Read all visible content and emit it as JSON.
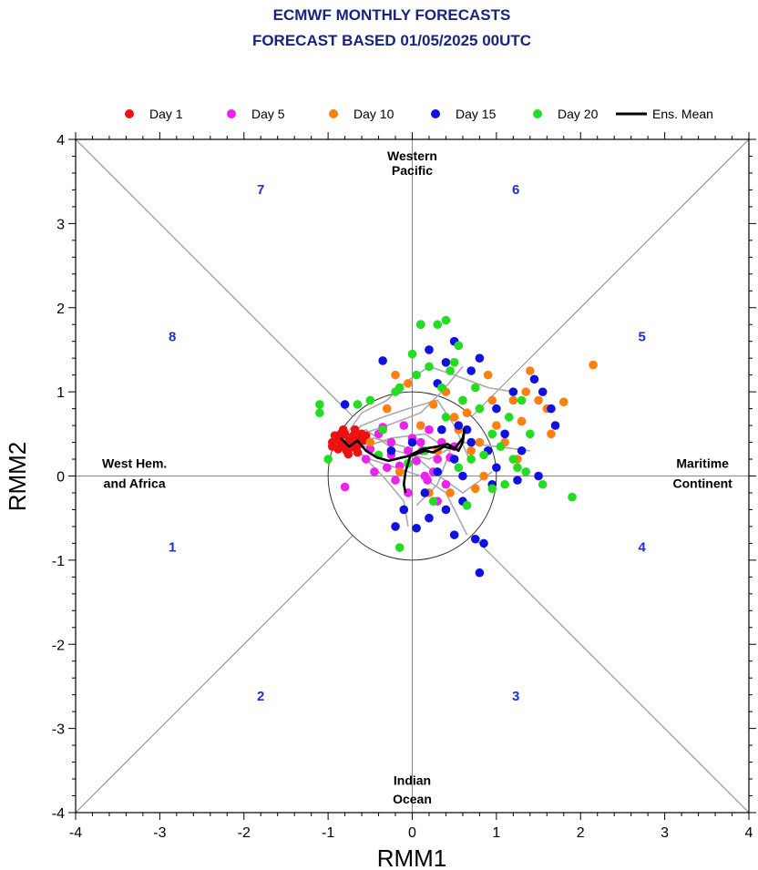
{
  "chart_data": {
    "type": "scatter",
    "title": "ECMWF MONTHLY FORECASTS",
    "subtitle": "FORECAST  BASED 01/05/2025 00UTC",
    "xlabel": "RMM1",
    "ylabel": "RMM2",
    "xlim": [
      -4,
      4
    ],
    "ylim": [
      -4,
      4
    ],
    "xticks": [
      "-4",
      "-3",
      "-2",
      "-1",
      "0",
      "1",
      "2",
      "3",
      "4"
    ],
    "yticks": [
      "-4",
      "-3",
      "-2",
      "-1",
      "0",
      "1",
      "2",
      "3",
      "4"
    ],
    "grid": false,
    "legend_position": "top",
    "colors": {
      "title": "#1a237e",
      "phase_number": "#1f2fd6",
      "day1": "#ee1111",
      "day5": "#ee22ee",
      "day10": "#ff7f12",
      "day15": "#1010e0",
      "day20": "#22dd22",
      "ens_mean": "#000000",
      "ensemble_track": "#aaaaaa",
      "guide_lines": "#888888"
    },
    "regions": [
      {
        "label": "Western",
        "x": 0,
        "y": 3.75
      },
      {
        "label": "Pacific",
        "x": 0,
        "y": 3.58
      },
      {
        "label": "West Hem.",
        "x": -3.3,
        "y": 0.1
      },
      {
        "label": "and Africa",
        "x": -3.3,
        "y": -0.14
      },
      {
        "label": "Maritime",
        "x": 3.45,
        "y": 0.1
      },
      {
        "label": "Continent",
        "x": 3.45,
        "y": -0.14
      },
      {
        "label": "Indian",
        "x": 0,
        "y": -3.67
      },
      {
        "label": "Ocean",
        "x": 0,
        "y": -3.89
      }
    ],
    "phases": [
      {
        "label": "1",
        "x": -2.85,
        "y": -0.9
      },
      {
        "label": "2",
        "x": -1.8,
        "y": -2.67
      },
      {
        "label": "3",
        "x": 1.23,
        "y": -2.67
      },
      {
        "label": "4",
        "x": 2.73,
        "y": -0.9
      },
      {
        "label": "5",
        "x": 2.73,
        "y": 1.6
      },
      {
        "label": "6",
        "x": 1.23,
        "y": 3.35
      },
      {
        "label": "7",
        "x": -1.8,
        "y": 3.35
      },
      {
        "label": "8",
        "x": -2.85,
        "y": 1.6
      }
    ],
    "series": [
      {
        "name": "Day 1",
        "marker": "day1",
        "points": [
          [
            -0.95,
            0.4
          ],
          [
            -0.9,
            0.45
          ],
          [
            -0.85,
            0.38
          ],
          [
            -0.8,
            0.5
          ],
          [
            -0.78,
            0.3
          ],
          [
            -0.75,
            0.42
          ],
          [
            -0.7,
            0.48
          ],
          [
            -0.65,
            0.36
          ],
          [
            -0.6,
            0.5
          ],
          [
            -0.58,
            0.42
          ],
          [
            -0.88,
            0.32
          ],
          [
            -0.82,
            0.55
          ],
          [
            -0.72,
            0.34
          ],
          [
            -0.68,
            0.55
          ],
          [
            -0.92,
            0.48
          ],
          [
            -0.62,
            0.45
          ],
          [
            -0.55,
            0.48
          ],
          [
            -0.86,
            0.42
          ],
          [
            -0.76,
            0.26
          ],
          [
            -0.8,
            0.35
          ],
          [
            -0.7,
            0.4
          ],
          [
            -0.85,
            0.5
          ],
          [
            -0.95,
            0.35
          ],
          [
            -0.65,
            0.28
          ]
        ]
      },
      {
        "name": "Day 5",
        "marker": "day5",
        "points": [
          [
            -0.8,
            -0.13
          ],
          [
            -0.5,
            0.32
          ],
          [
            -0.4,
            0.5
          ],
          [
            -0.25,
            0.4
          ],
          [
            -0.15,
            0.12
          ],
          [
            -0.05,
            0.3
          ],
          [
            0.1,
            0.4
          ],
          [
            0.2,
            0.55
          ],
          [
            -0.3,
            0.1
          ],
          [
            -0.45,
            0.05
          ],
          [
            0.05,
            0.18
          ],
          [
            -0.2,
            -0.05
          ],
          [
            0.15,
            0.0
          ],
          [
            -0.35,
            0.58
          ],
          [
            0.3,
            0.2
          ],
          [
            0.0,
            0.45
          ],
          [
            -0.1,
            0.6
          ],
          [
            0.25,
            0.05
          ],
          [
            -0.55,
            0.2
          ],
          [
            0.12,
            0.3
          ],
          [
            0.4,
            -0.1
          ],
          [
            -0.05,
            -0.2
          ],
          [
            0.35,
            0.4
          ],
          [
            0.45,
            0.22
          ],
          [
            -0.25,
            0.25
          ],
          [
            0.18,
            -0.05
          ],
          [
            0.5,
            0.35
          ],
          [
            0.3,
            -0.3
          ]
        ]
      },
      {
        "name": "Day 10",
        "marker": "day10",
        "points": [
          [
            2.15,
            1.32
          ],
          [
            1.8,
            0.88
          ],
          [
            1.65,
            0.5
          ],
          [
            1.6,
            0.8
          ],
          [
            1.3,
            0.65
          ],
          [
            1.4,
            1.25
          ],
          [
            1.2,
            0.9
          ],
          [
            1.0,
            0.6
          ],
          [
            0.8,
            0.4
          ],
          [
            0.6,
            0.9
          ],
          [
            0.5,
            0.7
          ],
          [
            0.4,
            1.0
          ],
          [
            -0.2,
            1.2
          ],
          [
            -0.5,
            0.4
          ],
          [
            0.2,
            -0.2
          ],
          [
            -0.3,
            0.8
          ],
          [
            0.9,
            1.2
          ],
          [
            0.7,
            0.3
          ],
          [
            1.1,
            0.4
          ],
          [
            1.5,
            0.9
          ],
          [
            0.3,
            0.3
          ],
          [
            0.55,
            0.55
          ],
          [
            0.65,
            0.75
          ],
          [
            1.25,
            0.2
          ],
          [
            -0.15,
            0.05
          ],
          [
            0.45,
            -0.2
          ],
          [
            0.85,
            0.0
          ],
          [
            0.1,
            0.6
          ],
          [
            0.75,
            -0.15
          ],
          [
            0.95,
            0.9
          ],
          [
            1.35,
            1.0
          ],
          [
            0.25,
            0.85
          ],
          [
            -0.05,
            1.1
          ]
        ]
      },
      {
        "name": "Day 15",
        "marker": "day15",
        "points": [
          [
            0.8,
            -1.15
          ],
          [
            0.85,
            -0.8
          ],
          [
            0.75,
            -0.75
          ],
          [
            0.6,
            -0.3
          ],
          [
            0.5,
            -0.7
          ],
          [
            0.2,
            -0.5
          ],
          [
            0.05,
            -0.62
          ],
          [
            -0.2,
            -0.6
          ],
          [
            -0.1,
            -0.4
          ],
          [
            0.3,
            0.05
          ],
          [
            0.5,
            0.2
          ],
          [
            0.7,
            0.4
          ],
          [
            0.9,
            0.3
          ],
          [
            1.1,
            0.5
          ],
          [
            1.3,
            0.3
          ],
          [
            1.5,
            0.0
          ],
          [
            1.7,
            0.6
          ],
          [
            1.65,
            0.8
          ],
          [
            1.55,
            1.0
          ],
          [
            1.45,
            1.15
          ],
          [
            1.2,
            1.0
          ],
          [
            1.0,
            0.8
          ],
          [
            0.8,
            1.4
          ],
          [
            0.7,
            1.25
          ],
          [
            0.5,
            1.6
          ],
          [
            0.4,
            1.35
          ],
          [
            0.3,
            1.1
          ],
          [
            0.2,
            1.5
          ],
          [
            0.1,
            1.8
          ],
          [
            -0.35,
            1.37
          ],
          [
            -0.8,
            0.85
          ],
          [
            0.0,
            0.4
          ],
          [
            0.6,
            0.0
          ],
          [
            0.4,
            -0.4
          ],
          [
            0.65,
            0.55
          ],
          [
            0.95,
            -0.1
          ],
          [
            1.25,
            -0.05
          ],
          [
            0.15,
            -0.2
          ],
          [
            0.35,
            0.55
          ],
          [
            -0.25,
            0.3
          ],
          [
            1.0,
            0.1
          ],
          [
            0.55,
            0.6
          ]
        ]
      },
      {
        "name": "Day 20",
        "marker": "day20",
        "points": [
          [
            -1.1,
            0.85
          ],
          [
            -1.1,
            0.75
          ],
          [
            -1.0,
            0.2
          ],
          [
            -0.65,
            0.85
          ],
          [
            -0.5,
            0.9
          ],
          [
            -0.15,
            1.05
          ],
          [
            0.0,
            1.45
          ],
          [
            0.1,
            1.8
          ],
          [
            0.3,
            1.8
          ],
          [
            0.4,
            1.85
          ],
          [
            0.5,
            1.35
          ],
          [
            0.55,
            1.55
          ],
          [
            1.25,
            0.1
          ],
          [
            1.35,
            0.05
          ],
          [
            1.55,
            -0.1
          ],
          [
            1.9,
            -0.25
          ],
          [
            0.7,
            0.2
          ],
          [
            0.95,
            0.5
          ],
          [
            1.15,
            0.7
          ],
          [
            1.2,
            0.2
          ],
          [
            1.3,
            0.9
          ],
          [
            -0.15,
            -0.85
          ],
          [
            0.05,
            1.2
          ],
          [
            0.2,
            1.3
          ],
          [
            -0.2,
            1.0
          ],
          [
            0.45,
            1.25
          ],
          [
            0.35,
            1.05
          ],
          [
            0.6,
            0.9
          ],
          [
            0.75,
            1.05
          ],
          [
            0.8,
            0.8
          ],
          [
            1.05,
            0.35
          ],
          [
            0.15,
            0.3
          ],
          [
            -0.35,
            0.55
          ],
          [
            -0.05,
            0.15
          ],
          [
            0.55,
            0.1
          ],
          [
            0.95,
            -0.15
          ],
          [
            0.25,
            -0.3
          ],
          [
            -0.4,
            0.25
          ],
          [
            1.4,
            0.5
          ],
          [
            1.1,
            -0.1
          ],
          [
            0.4,
            0.7
          ],
          [
            0.65,
            -0.35
          ],
          [
            0.85,
            0.25
          ]
        ]
      }
    ],
    "ensemble_members": [
      [
        [
          -0.85,
          0.4
        ],
        [
          -0.6,
          0.75
        ],
        [
          -0.3,
          0.9
        ],
        [
          -0.1,
          1.1
        ],
        [
          0.2,
          1.3
        ],
        [
          0.5,
          1.2
        ],
        [
          0.9,
          1.05
        ],
        [
          1.2,
          1.0
        ]
      ],
      [
        [
          -0.85,
          0.4
        ],
        [
          -0.5,
          0.2
        ],
        [
          -0.2,
          0.1
        ],
        [
          0.1,
          0.0
        ],
        [
          0.4,
          -0.2
        ],
        [
          0.55,
          -0.5
        ],
        [
          0.65,
          -0.7
        ]
      ],
      [
        [
          -0.85,
          0.4
        ],
        [
          -0.55,
          0.55
        ],
        [
          -0.2,
          0.3
        ],
        [
          0.2,
          0.2
        ],
        [
          0.6,
          0.4
        ],
        [
          1.0,
          0.35
        ],
        [
          1.4,
          0.3
        ]
      ],
      [
        [
          -0.85,
          0.4
        ],
        [
          -0.65,
          0.3
        ],
        [
          -0.35,
          0.0
        ],
        [
          -0.1,
          -0.3
        ],
        [
          -0.05,
          -0.6
        ]
      ],
      [
        [
          -0.85,
          0.4
        ],
        [
          -0.6,
          0.6
        ],
        [
          -0.35,
          0.7
        ],
        [
          -0.05,
          0.8
        ],
        [
          0.3,
          0.9
        ],
        [
          0.5,
          0.6
        ],
        [
          0.7,
          0.15
        ]
      ],
      [
        [
          -0.85,
          0.4
        ],
        [
          -0.55,
          0.35
        ],
        [
          -0.25,
          0.45
        ],
        [
          0.15,
          0.5
        ],
        [
          0.45,
          0.3
        ],
        [
          0.3,
          -0.1
        ],
        [
          0.05,
          -0.35
        ]
      ],
      [
        [
          -0.85,
          0.4
        ],
        [
          -0.6,
          0.5
        ],
        [
          -0.3,
          0.6
        ],
        [
          0.1,
          0.75
        ],
        [
          0.35,
          1.0
        ],
        [
          0.6,
          1.3
        ]
      ],
      [
        [
          -0.85,
          0.4
        ],
        [
          -0.45,
          0.45
        ],
        [
          -0.1,
          0.35
        ],
        [
          0.25,
          0.05
        ],
        [
          0.6,
          -0.2
        ],
        [
          0.95,
          0.05
        ]
      ]
    ],
    "ens_mean": [
      [
        -0.85,
        0.45
      ],
      [
        -0.75,
        0.35
      ],
      [
        -0.65,
        0.42
      ],
      [
        -0.55,
        0.3
      ],
      [
        -0.42,
        0.22
      ],
      [
        -0.28,
        0.18
      ],
      [
        -0.12,
        0.22
      ],
      [
        0.02,
        0.25
      ],
      [
        0.15,
        0.3
      ],
      [
        0.25,
        0.28
      ],
      [
        0.38,
        0.35
      ],
      [
        0.5,
        0.32
      ],
      [
        0.6,
        0.45
      ],
      [
        0.62,
        0.55
      ],
      [
        0.6,
        0.4
      ],
      [
        0.55,
        0.3
      ],
      [
        0.42,
        0.38
      ],
      [
        0.3,
        0.35
      ],
      [
        0.12,
        0.32
      ],
      [
        -0.02,
        0.25
      ],
      [
        -0.08,
        0.05
      ],
      [
        -0.1,
        -0.1
      ],
      [
        -0.08,
        -0.2
      ]
    ],
    "legend": [
      {
        "label": "Day 1",
        "marker": "day1",
        "kind": "dot"
      },
      {
        "label": "Day 5",
        "marker": "day5",
        "kind": "dot"
      },
      {
        "label": "Day 10",
        "marker": "day10",
        "kind": "dot"
      },
      {
        "label": "Day 15",
        "marker": "day15",
        "kind": "dot"
      },
      {
        "label": "Day 20",
        "marker": "day20",
        "kind": "dot"
      },
      {
        "label": "Ens. Mean",
        "marker": "ens_mean",
        "kind": "line"
      }
    ]
  }
}
